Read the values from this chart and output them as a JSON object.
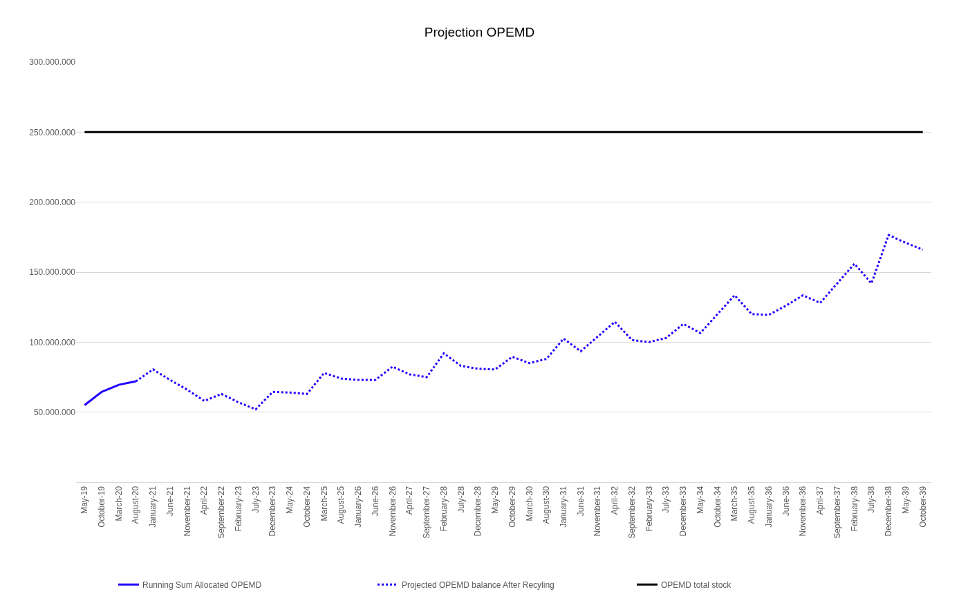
{
  "chart_data": {
    "type": "line",
    "title": "Projection OPEMD",
    "categories": [
      "May-19",
      "October-19",
      "March-20",
      "August-20",
      "January-21",
      "June-21",
      "November-21",
      "April-22",
      "September-22",
      "February-23",
      "July-23",
      "December-23",
      "May-24",
      "October-24",
      "March-25",
      "August-25",
      "January-26",
      "June-26",
      "November-26",
      "April-27",
      "September-27",
      "February-28",
      "July-28",
      "December-28",
      "May-29",
      "October-29",
      "March-30",
      "August-30",
      "January-31",
      "June-31",
      "November-31",
      "April-32",
      "September-32",
      "February-33",
      "July-33",
      "December-33",
      "May-34",
      "October-34",
      "March-35",
      "August-35",
      "January-36",
      "June-36",
      "November-36",
      "April-37",
      "September-37",
      "February-38",
      "July-38",
      "December-38",
      "May-39",
      "October-39"
    ],
    "series": [
      {
        "name": "Running Sum Allocated OPEMD",
        "color": "#2200ff",
        "line_style": "solid",
        "values": [
          55000000,
          64500000,
          69500000,
          72000000,
          null,
          null,
          null,
          null,
          null,
          null,
          null,
          null,
          null,
          null,
          null,
          null,
          null,
          null,
          null,
          null,
          null,
          null,
          null,
          null,
          null,
          null,
          null,
          null,
          null,
          null,
          null,
          null,
          null,
          null,
          null,
          null,
          null,
          null,
          null,
          null,
          null,
          null,
          null,
          null,
          null,
          null,
          null,
          null,
          null,
          null
        ]
      },
      {
        "name": "Projected OPEMD balance After Recyling",
        "color": "#2200ff",
        "line_style": "dotted",
        "values": [
          null,
          null,
          null,
          72000000,
          80500000,
          73000000,
          66000000,
          58000000,
          63000000,
          57000000,
          52000000,
          64500000,
          64000000,
          63000000,
          78000000,
          74000000,
          73000000,
          73000000,
          82500000,
          77000000,
          75000000,
          92000000,
          83000000,
          81000000,
          80500000,
          89500000,
          85000000,
          88000000,
          102500000,
          93500000,
          104000000,
          114500000,
          101500000,
          100000000,
          103000000,
          113000000,
          106500000,
          120000000,
          133500000,
          120000000,
          119500000,
          126000000,
          133500000,
          128000000,
          142000000,
          156000000,
          142000000,
          176500000,
          171000000,
          166000000
        ]
      },
      {
        "name": "OPEMD total stock",
        "color": "#000000",
        "line_style": "solid",
        "values": [
          250000000,
          250000000,
          250000000,
          250000000,
          250000000,
          250000000,
          250000000,
          250000000,
          250000000,
          250000000,
          250000000,
          250000000,
          250000000,
          250000000,
          250000000,
          250000000,
          250000000,
          250000000,
          250000000,
          250000000,
          250000000,
          250000000,
          250000000,
          250000000,
          250000000,
          250000000,
          250000000,
          250000000,
          250000000,
          250000000,
          250000000,
          250000000,
          250000000,
          250000000,
          250000000,
          250000000,
          250000000,
          250000000,
          250000000,
          250000000,
          250000000,
          250000000,
          250000000,
          250000000,
          250000000,
          250000000,
          250000000,
          250000000,
          250000000,
          250000000
        ]
      }
    ],
    "ylim": [
      0,
      300000000
    ],
    "yticks": [
      {
        "value": 50000000,
        "label": "50.000.000"
      },
      {
        "value": 100000000,
        "label": "100.000.000"
      },
      {
        "value": 150000000,
        "label": "150.000.000"
      },
      {
        "value": 200000000,
        "label": "200.000.000"
      },
      {
        "value": 250000000,
        "label": "250.000.000"
      },
      {
        "value": 300000000,
        "label": "300.000.000"
      }
    ],
    "grid": "y",
    "legend": "bottom",
    "marker": "none"
  }
}
